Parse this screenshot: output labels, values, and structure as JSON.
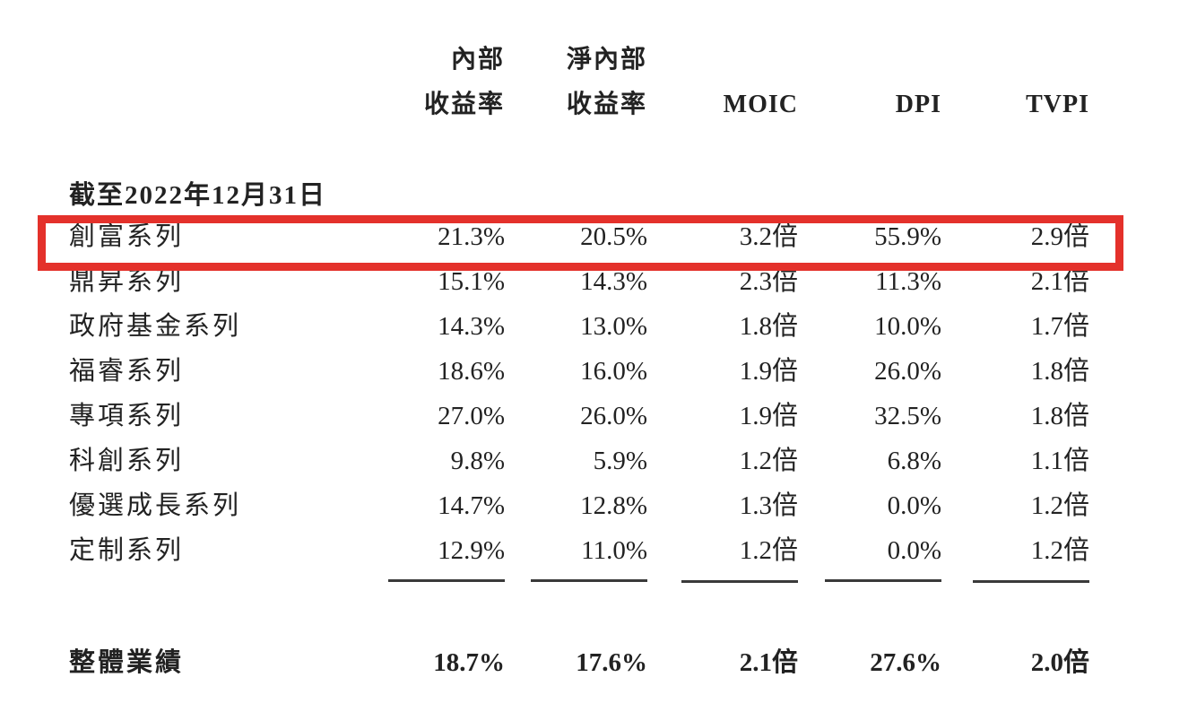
{
  "page": {
    "background": "#ffffff",
    "text_color": "#222222",
    "css": "color:#222222"
  },
  "table": {
    "section_heading": "截至2022年12月31日",
    "columns": [
      {
        "line1": "內部",
        "line2": "收益率"
      },
      {
        "line1": "淨內部",
        "line2": "收益率"
      },
      {
        "label": "MOIC"
      },
      {
        "label": "DPI"
      },
      {
        "label": "TVPI"
      }
    ],
    "rows": [
      {
        "label": "創富系列",
        "irr": "21.3%",
        "net_irr": "20.5%",
        "moic": "3.2倍",
        "dpi": "55.9%",
        "tvpi": "2.9倍",
        "highlighted": true
      },
      {
        "label": "鼎昇系列",
        "irr": "15.1%",
        "net_irr": "14.3%",
        "moic": "2.3倍",
        "dpi": "11.3%",
        "tvpi": "2.1倍",
        "highlighted": false
      },
      {
        "label": "政府基金系列",
        "irr": "14.3%",
        "net_irr": "13.0%",
        "moic": "1.8倍",
        "dpi": "10.0%",
        "tvpi": "1.7倍",
        "highlighted": false
      },
      {
        "label": "福睿系列",
        "irr": "18.6%",
        "net_irr": "16.0%",
        "moic": "1.9倍",
        "dpi": "26.0%",
        "tvpi": "1.8倍",
        "highlighted": false
      },
      {
        "label": "專項系列",
        "irr": "27.0%",
        "net_irr": "26.0%",
        "moic": "1.9倍",
        "dpi": "32.5%",
        "tvpi": "1.8倍",
        "highlighted": false
      },
      {
        "label": "科創系列",
        "irr": "9.8%",
        "net_irr": "5.9%",
        "moic": "1.2倍",
        "dpi": "6.8%",
        "tvpi": "1.1倍",
        "highlighted": false
      },
      {
        "label": "優選成長系列",
        "irr": "14.7%",
        "net_irr": "12.8%",
        "moic": "1.3倍",
        "dpi": "0.0%",
        "tvpi": "1.2倍",
        "highlighted": false
      },
      {
        "label": "定制系列",
        "irr": "12.9%",
        "net_irr": "11.0%",
        "moic": "1.2倍",
        "dpi": "0.0%",
        "tvpi": "1.2倍",
        "highlighted": false
      }
    ],
    "total_row": {
      "label": "整體業績",
      "irr": "18.7%",
      "net_irr": "17.6%",
      "moic": "2.1倍",
      "dpi": "27.6%",
      "tvpi": "2.0倍"
    }
  },
  "highlight": {
    "color": "#e4312b",
    "css": "border-color:#e4312b",
    "highlighted_row": "創富系列"
  }
}
